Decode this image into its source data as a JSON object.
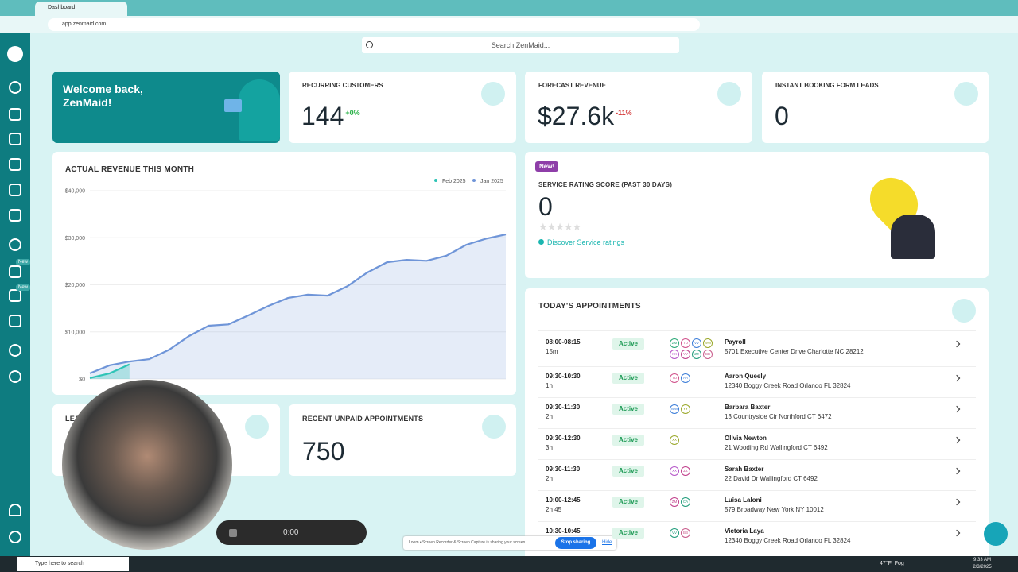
{
  "browser": {
    "tab_title": "Dashboard",
    "url": "app.zenmaid.com"
  },
  "search": {
    "placeholder": "Search ZenMaid..."
  },
  "sidebar": {
    "badges": [
      "New",
      "New"
    ]
  },
  "welcome": {
    "title": "Welcome back, ZenMaid!"
  },
  "stats": [
    {
      "label": "RECURRING CUSTOMERS",
      "value": 144,
      "change": "+0%"
    },
    {
      "label": "FORECAST REVENUE",
      "value": "$27.6k",
      "change": "-11%"
    },
    {
      "label": "INSTANT BOOKING FORM LEADS",
      "value": 0
    }
  ],
  "revenue_chart": {
    "type": "line",
    "title": "ACTUAL REVENUE THIS MONTH",
    "series": [
      {
        "name": "Feb 2025",
        "color": "#2ec4b6",
        "values": [
          200,
          1200,
          3100
        ]
      },
      {
        "name": "Jan 2025",
        "color": "#6f95d8",
        "values": [
          1200,
          2900,
          3700,
          4200,
          6200,
          9100,
          11300,
          11600,
          13500,
          15500,
          17200,
          17900,
          17700,
          19700,
          22600,
          24800,
          25300,
          25100,
          26200,
          28500,
          29800,
          30700
        ]
      }
    ],
    "ylim": [
      0,
      40000
    ],
    "yticks": [
      {
        "value": 0,
        "label": "$0"
      },
      {
        "value": 10000,
        "label": "$10,000"
      },
      {
        "value": 20000,
        "label": "$20,000"
      },
      {
        "value": 30000,
        "label": "$30,000"
      },
      {
        "value": 40000,
        "label": "$40,000"
      }
    ],
    "grid": true
  },
  "service_rating": {
    "badge": "New!",
    "title": "SERVICE RATING SCORE (PAST 30 DAYS)",
    "score": 0,
    "link": "Discover Service ratings"
  },
  "appointments": {
    "title": "TODAY'S APPOINTMENTS",
    "rows": [
      {
        "time": "08:00-08:15",
        "duration": "15m",
        "status": "Active",
        "staff": [
          "ZM",
          "TU",
          "VV",
          "WW",
          "XX",
          "YY",
          "ZZ",
          "BB"
        ],
        "name": "Payroll",
        "address": "5701 Executive Center Drive Charlotte NC 28212"
      },
      {
        "time": "09:30-10:30",
        "duration": "1h",
        "status": "Active",
        "staff": [
          "TU",
          "AA"
        ],
        "name": "Aaron Queely",
        "address": "12340 Boggy Creek Road Orlando FL 32824"
      },
      {
        "time": "09:30-11:30",
        "duration": "2h",
        "status": "Active",
        "staff": [
          "WW",
          "YY"
        ],
        "name": "Barbara Baxter",
        "address": "13 Countryside Cir Northford CT 6472"
      },
      {
        "time": "09:30-12:30",
        "duration": "3h",
        "status": "Active",
        "staff": [
          "XX"
        ],
        "name": "Olivia Newton",
        "address": "21 Wooding Rd Wallingford CT 6492"
      },
      {
        "time": "09:30-11:30",
        "duration": "2h",
        "status": "Active",
        "staff": [
          "XX",
          "ZZ"
        ],
        "name": "Sarah Baxter",
        "address": "22 David Dr Wallingford CT 6492"
      },
      {
        "time": "10:00-12:45",
        "duration": "2h 45",
        "status": "Active",
        "staff": [
          "ZM",
          "CA"
        ],
        "name": "Luisa Laloni",
        "address": "579 Broadway New York NY 10012"
      },
      {
        "time": "10:30-10:45",
        "status": "Active",
        "staff": [
          "VV",
          "BB"
        ],
        "name": "Victoria Laya",
        "address": "12340 Boggy Creek Road Orlando FL 32824"
      }
    ]
  },
  "bottom_cards": [
    {
      "label": "LEA"
    },
    {
      "label": "RECENT UNPAID APPOINTMENTS",
      "value": 750
    }
  ],
  "recorder": {
    "time": "0:00"
  },
  "loom_notice": {
    "text": "Loom • Screen Recorder & Screen Capture is sharing your screen.",
    "stop": "Stop sharing",
    "hide": "Hide"
  },
  "taskbar": {
    "search": "Type here to search",
    "weather": "47°F  Fog",
    "time": "9:33 AM",
    "date": "2/3/2025"
  }
}
